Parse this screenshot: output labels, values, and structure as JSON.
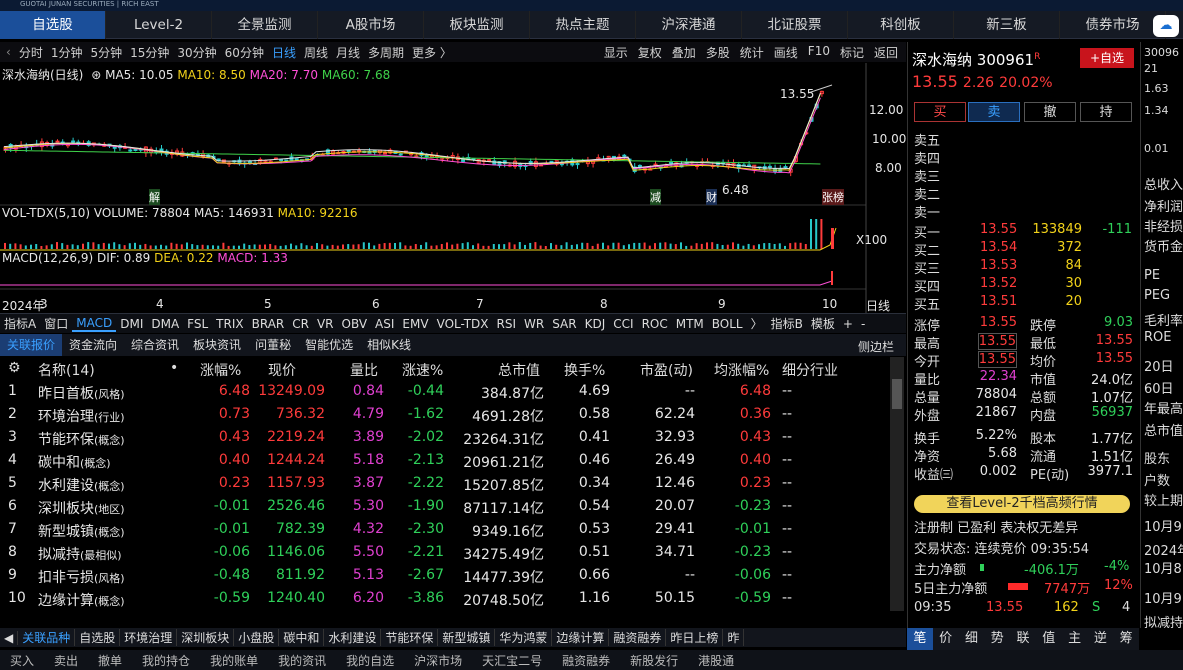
{
  "brand": "GUOTAI JUNAN SECURITIES | RICH EAST",
  "main_tabs": [
    "自选股",
    "Level-2",
    "全景监测",
    "A股市场",
    "板块监测",
    "热点主题",
    "沪深港通",
    "北证股票",
    "科创板",
    "新三板",
    "债券市场"
  ],
  "periods": [
    "分时",
    "1分钟",
    "5分钟",
    "15分钟",
    "30分钟",
    "60分钟",
    "日线",
    "周线",
    "月线",
    "多周期",
    "更多 〉"
  ],
  "chart_tools": [
    "显示",
    "复权",
    "叠加",
    "多股",
    "统计",
    "画线",
    "F10",
    "标记",
    "返回"
  ],
  "ma_header": {
    "title": "深水海纳(日线)",
    "ma5": "MA5: 10.05",
    "ma10": "MA10: 8.50",
    "ma20": "MA20: 7.70",
    "ma60": "MA60: 7.68"
  },
  "vol_header": {
    "title": "VOL-TDX(5,10)",
    "volume": "VOLUME: 78804",
    "ma5": "MA5: 146931",
    "ma10": "MA10: 92216"
  },
  "macd_header": {
    "title": "MACD(12,26,9)",
    "dif": "DIF: 0.89",
    "dea": "DEA: 0.22",
    "macd": "MACD: 1.33"
  },
  "price_axis": [
    "12.00",
    "10.00",
    "8.00"
  ],
  "x100": "X100",
  "date_axis": [
    "2024年",
    "3",
    "4",
    "5",
    "6",
    "7",
    "8",
    "9",
    "10"
  ],
  "day_label": "日线",
  "chart_marks": {
    "high": "13.55",
    "low": "6.48",
    "m1": "解",
    "m2": "减",
    "m3": "财",
    "m4": "张榜"
  },
  "indicators": [
    "指标A",
    "窗口",
    "MACD",
    "DMI",
    "DMA",
    "FSL",
    "TRIX",
    "BRAR",
    "CR",
    "VR",
    "OBV",
    "ASI",
    "EMV",
    "VOL-TDX",
    "RSI",
    "WR",
    "SAR",
    "KDJ",
    "CCI",
    "ROC",
    "MTM",
    "BOLL",
    "〉",
    "指标B",
    "模板",
    "+",
    "-"
  ],
  "subtabs": [
    "关联报价",
    "资金流向",
    "综合资讯",
    "板块资讯",
    "问董秘",
    "智能优选",
    "相似K线"
  ],
  "sidebar_btn": "侧边栏",
  "table": {
    "headers": [
      "名称(14)",
      "•",
      "涨幅%",
      "现价",
      "量比",
      "涨速%",
      "总市值",
      "换手%",
      "市盈(动)",
      "均涨幅%",
      "细分行业"
    ],
    "rows": [
      {
        "n": "1",
        "name": "昨日首板",
        "tag": "(风格)",
        "chg": "6.48",
        "price": "13249.09",
        "vr": "0.84",
        "spd": "-0.44",
        "cap": "384.87亿",
        "turn": "4.69",
        "pe": "--",
        "avg": "6.48",
        "ind": "--"
      },
      {
        "n": "2",
        "name": "环境治理",
        "tag": "(行业)",
        "chg": "0.73",
        "price": "736.32",
        "vr": "4.79",
        "spd": "-1.62",
        "cap": "4691.28亿",
        "turn": "0.58",
        "pe": "62.24",
        "avg": "0.36",
        "ind": "--"
      },
      {
        "n": "3",
        "name": "节能环保",
        "tag": "(概念)",
        "chg": "0.43",
        "price": "2219.24",
        "vr": "3.89",
        "spd": "-2.02",
        "cap": "23264.31亿",
        "turn": "0.41",
        "pe": "32.93",
        "avg": "0.43",
        "ind": "--"
      },
      {
        "n": "4",
        "name": "碳中和",
        "tag": "(概念)",
        "chg": "0.40",
        "price": "1244.24",
        "vr": "5.18",
        "spd": "-2.13",
        "cap": "20961.21亿",
        "turn": "0.46",
        "pe": "26.49",
        "avg": "0.40",
        "ind": "--"
      },
      {
        "n": "5",
        "name": "水利建设",
        "tag": "(概念)",
        "chg": "0.23",
        "price": "1157.93",
        "vr": "3.87",
        "spd": "-2.22",
        "cap": "15207.85亿",
        "turn": "0.34",
        "pe": "12.46",
        "avg": "0.23",
        "ind": "--"
      },
      {
        "n": "6",
        "name": "深圳板块",
        "tag": "(地区)",
        "chg": "-0.01",
        "price": "2526.46",
        "vr": "5.30",
        "spd": "-1.90",
        "cap": "87117.14亿",
        "turn": "0.54",
        "pe": "20.07",
        "avg": "-0.23",
        "ind": "--"
      },
      {
        "n": "7",
        "name": "新型城镇",
        "tag": "(概念)",
        "chg": "-0.01",
        "price": "782.39",
        "vr": "4.32",
        "spd": "-2.30",
        "cap": "9349.16亿",
        "turn": "0.53",
        "pe": "29.41",
        "avg": "-0.01",
        "ind": "--"
      },
      {
        "n": "8",
        "name": "拟减持",
        "tag": "(最相似)",
        "chg": "-0.06",
        "price": "1146.06",
        "vr": "5.50",
        "spd": "-2.21",
        "cap": "34275.49亿",
        "turn": "0.51",
        "pe": "34.71",
        "avg": "-0.23",
        "ind": "--"
      },
      {
        "n": "9",
        "name": "扣非亏损",
        "tag": "(风格)",
        "chg": "-0.48",
        "price": "811.92",
        "vr": "5.13",
        "spd": "-2.67",
        "cap": "14477.39亿",
        "turn": "0.66",
        "pe": "--",
        "avg": "-0.06",
        "ind": "--"
      },
      {
        "n": "10",
        "name": "边缘计算",
        "tag": "(概念)",
        "chg": "-0.59",
        "price": "1240.40",
        "vr": "6.20",
        "spd": "-3.86",
        "cap": "20748.50亿",
        "turn": "1.16",
        "pe": "50.15",
        "avg": "-0.59",
        "ind": "--"
      }
    ]
  },
  "bottom_tabs": [
    "关联品种",
    "自选股",
    "环境治理",
    "深圳板块",
    "小盘股",
    "碳中和",
    "水利建设",
    "节能环保",
    "新型城镇",
    "华为鸿蒙",
    "边缘计算",
    "融资融券",
    "昨日上榜",
    "昨"
  ],
  "status_bar": [
    "买入",
    "卖出",
    "撤单",
    "我的持仓",
    "我的账单",
    "我的资讯",
    "我的自选",
    "沪深市场",
    "天汇宝二号",
    "融资融券",
    "新股发行",
    "港股通"
  ],
  "stock": {
    "name": "深水海纳",
    "code": "300961",
    "r": "R",
    "add": "+自选",
    "price": "13.55",
    "chg": "2.26",
    "pct": "20.02%"
  },
  "trade_btns": [
    "买",
    "卖",
    "撤",
    "持"
  ],
  "sell_labels": [
    "卖五",
    "卖四",
    "卖三",
    "卖二",
    "卖一"
  ],
  "buy": [
    {
      "l": "买一",
      "p": "13.55",
      "v": "133849",
      "d": "-111"
    },
    {
      "l": "买二",
      "p": "13.54",
      "v": "372",
      "d": ""
    },
    {
      "l": "买三",
      "p": "13.53",
      "v": "84",
      "d": ""
    },
    {
      "l": "买四",
      "p": "13.52",
      "v": "30",
      "d": ""
    },
    {
      "l": "买五",
      "p": "13.51",
      "v": "20",
      "d": ""
    }
  ],
  "stats": [
    [
      "涨停",
      "13.55",
      "跌停",
      "9.03"
    ],
    [
      "最高",
      "13.55",
      "最低",
      "13.55"
    ],
    [
      "今开",
      "13.55",
      "均价",
      "13.55"
    ],
    [
      "量比",
      "22.34",
      "市值",
      "24.0亿"
    ],
    [
      "总量",
      "78804",
      "总额",
      "1.07亿"
    ],
    [
      "外盘",
      "21867",
      "内盘",
      "56937"
    ],
    [
      "换手",
      "5.22%",
      "股本",
      "1.77亿"
    ],
    [
      "净资",
      "5.68",
      "流通",
      "1.51亿"
    ],
    [
      "收益㈢",
      "0.002",
      "PE(动)",
      "3977.1"
    ]
  ],
  "level2_banner": "查看Level-2千档高频行情",
  "reg": "注册制 已盈利 表决权无差异",
  "trade_state": "交易状态: 连续竞价 09:35:54",
  "mainflow": {
    "l": "主力净额",
    "v": "-406.1万",
    "p": "-4%"
  },
  "flow5": {
    "l": "5日主力净额",
    "v": "7747万",
    "p": "12%"
  },
  "tick": {
    "t": "09:35",
    "p": "13.55",
    "v": "162",
    "s": "S",
    "n": "4"
  },
  "right_tabs": [
    "笔",
    "价",
    "细",
    "势",
    "联",
    "值",
    "主",
    "逆",
    "筹"
  ],
  "far_right": [
    "30096",
    "21",
    "1.63",
    "1.34",
    "0.01",
    "总收入",
    "净利润",
    "非经损",
    "货币金",
    "PE",
    "PEG",
    "毛利率",
    "ROE",
    "20日",
    "60日",
    "年最高",
    "总市值",
    "股东",
    "户数",
    "较上期",
    "10月9",
    "2024年",
    "10月8",
    "10月9",
    "拟减持"
  ],
  "chart_data": {
    "type": "candlestick",
    "series": [
      {
        "name": "MA5",
        "value": "10.05"
      },
      {
        "name": "MA10",
        "value": "8.50"
      },
      {
        "name": "MA20",
        "value": "7.70"
      },
      {
        "name": "MA60",
        "value": "7.68"
      }
    ],
    "ylim": [
      6,
      14
    ],
    "last_price": 13.55,
    "low_marker": 6.48
  }
}
